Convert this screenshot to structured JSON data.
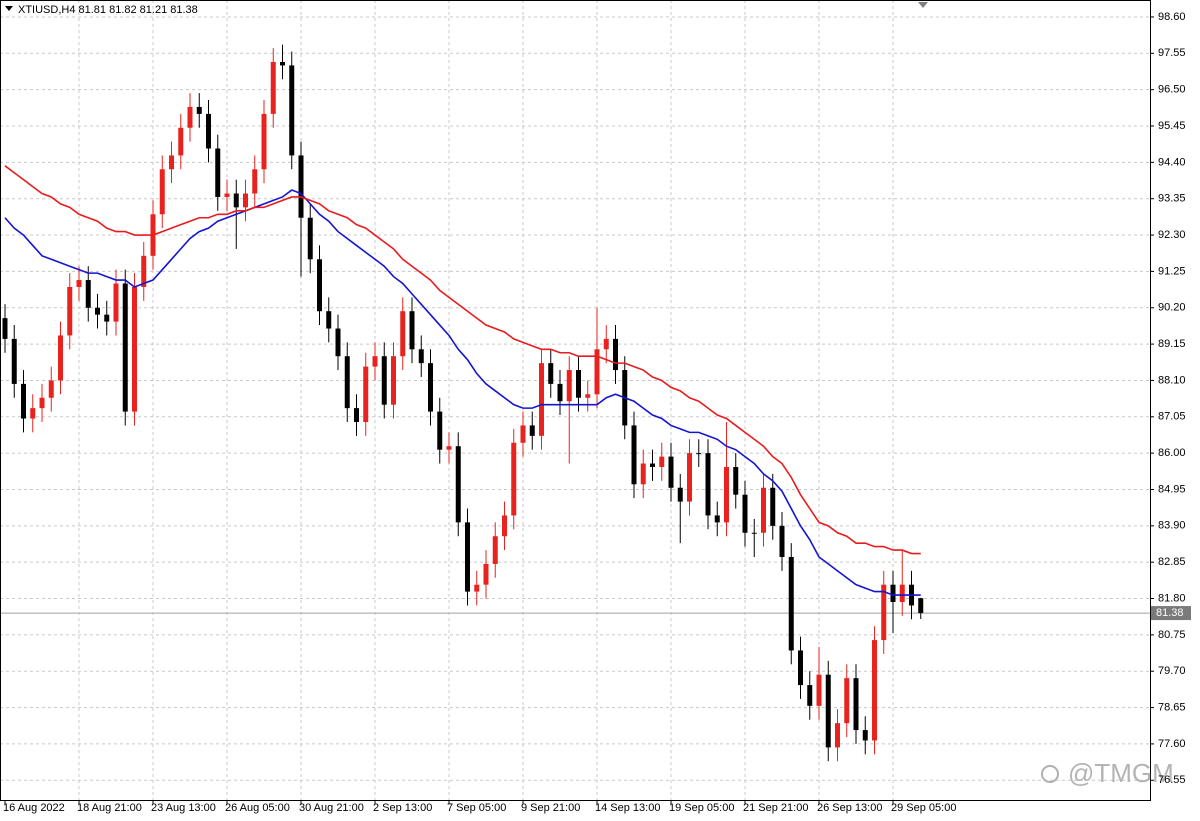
{
  "chart_data": {
    "type": "candlestick",
    "title": "XTIUSD,H4  81.81 81.82 81.21 81.38",
    "watermark": "@TMGM",
    "up_color": "#e8231f",
    "down_color": "#000000",
    "grid": true,
    "last_price": 81.38,
    "ylim": [
      75.98,
      99.09
    ],
    "yticks": [
      {
        "value": 98.6,
        "label": "98.60"
      },
      97.55,
      {
        "value": 96.5,
        "label": "96.50"
      },
      95.45,
      {
        "value": 94.4,
        "label": "94.40"
      },
      93.35,
      {
        "value": 92.3,
        "label": "92.30"
      },
      91.25,
      {
        "value": 90.2,
        "label": "90.20"
      },
      89.15,
      {
        "value": 88.1,
        "label": "88.10"
      },
      87.05,
      {
        "value": 86,
        "label": "86.00"
      },
      84.95,
      {
        "value": 83.9,
        "label": "83.90"
      },
      82.85,
      {
        "value": 81.8,
        "label": "81.80"
      },
      80.75,
      {
        "value": 79.7,
        "label": "79.70"
      },
      78.65,
      {
        "value": 77.6,
        "label": "77.60"
      },
      76.55
    ],
    "categories": [
      "16 Aug 2022",
      null,
      null,
      null,
      null,
      null,
      null,
      null,
      "18 Aug 21:00",
      null,
      null,
      null,
      null,
      null,
      null,
      null,
      "23 Aug 13:00",
      null,
      null,
      null,
      null,
      null,
      null,
      null,
      "26 Aug 05:00",
      null,
      null,
      null,
      null,
      null,
      null,
      null,
      "30 Aug 21:00",
      null,
      null,
      null,
      null,
      null,
      null,
      null,
      "2 Sep 13:00",
      null,
      null,
      null,
      null,
      null,
      null,
      null,
      "7 Sep 05:00",
      null,
      null,
      null,
      null,
      null,
      null,
      null,
      "9 Sep 21:00",
      null,
      null,
      null,
      null,
      null,
      null,
      null,
      "14 Sep 13:00",
      null,
      null,
      null,
      null,
      null,
      null,
      null,
      "19 Sep 05:00",
      null,
      null,
      null,
      null,
      null,
      null,
      null,
      "21 Sep 21:00",
      null,
      null,
      null,
      null,
      null,
      null,
      null,
      "26 Sep 13:00",
      null,
      null,
      null,
      null,
      null,
      null,
      null,
      "29 Sep 05:00",
      null,
      null,
      null
    ],
    "open": [
      89.9,
      89.3,
      88.0,
      87.0,
      87.3,
      87.6,
      88.1,
      89.4,
      90.8,
      91.0,
      90.2,
      90.0,
      89.8,
      90.9,
      87.2,
      90.8,
      91.7,
      92.9,
      94.2,
      94.6,
      95.4,
      96.0,
      95.8,
      94.8,
      93.4,
      93.5,
      93.1,
      93.5,
      94.2,
      95.8,
      97.3,
      97.2,
      94.6,
      92.8,
      91.6,
      90.1,
      89.6,
      88.8,
      87.3,
      86.9,
      88.5,
      88.8,
      87.4,
      88.8,
      90.1,
      89.0,
      88.6,
      87.2,
      86.1,
      86.2,
      84.0,
      82.0,
      82.2,
      82.8,
      83.6,
      84.2,
      86.3,
      86.8,
      86.5,
      88.6,
      88.0,
      87.5,
      88.4,
      87.6,
      87.7,
      89.0,
      89.3,
      88.4,
      86.8,
      85.1,
      85.7,
      85.6,
      85.9,
      85.0,
      84.6,
      86.0,
      86.0,
      84.2,
      84.0,
      85.6,
      84.8,
      83.7,
      83.7,
      85.0,
      83.9,
      83.0,
      80.3,
      79.3,
      78.7,
      79.6,
      77.5,
      78.2,
      79.5,
      78.0,
      77.7,
      80.6,
      82.2,
      81.7,
      82.2,
      81.81
    ],
    "high": [
      90.3,
      89.7,
      88.4,
      87.7,
      88.0,
      88.5,
      89.8,
      91.2,
      91.4,
      91.4,
      90.6,
      90.4,
      91.3,
      91.3,
      91.2,
      92.1,
      93.3,
      94.6,
      95.0,
      95.8,
      96.4,
      96.4,
      96.2,
      95.2,
      93.9,
      93.9,
      93.9,
      94.6,
      96.2,
      97.7,
      97.8,
      97.6,
      95.0,
      93.2,
      92.0,
      90.5,
      90.0,
      89.2,
      87.7,
      88.9,
      89.2,
      89.2,
      89.2,
      90.5,
      90.5,
      89.4,
      89.0,
      87.6,
      86.6,
      86.6,
      84.4,
      82.6,
      83.2,
      84.0,
      84.6,
      86.7,
      87.2,
      87.2,
      89.0,
      89.0,
      88.4,
      88.8,
      88.8,
      88.1,
      90.2,
      89.7,
      89.7,
      88.8,
      87.2,
      86.1,
      86.1,
      86.3,
      86.3,
      85.4,
      86.4,
      86.4,
      86.4,
      84.6,
      86.9,
      86.0,
      85.2,
      84.1,
      85.4,
      85.4,
      84.3,
      83.4,
      80.7,
      79.7,
      80.4,
      80.0,
      78.6,
      79.9,
      79.9,
      78.4,
      81.0,
      82.6,
      82.6,
      83.2,
      82.6,
      81.82
    ],
    "low": [
      88.9,
      87.6,
      86.6,
      86.6,
      86.9,
      87.2,
      87.7,
      89.0,
      90.4,
      89.8,
      89.6,
      89.4,
      89.4,
      86.8,
      86.8,
      90.4,
      91.3,
      92.5,
      93.8,
      94.2,
      95.0,
      95.4,
      94.4,
      93.0,
      93.0,
      91.9,
      92.7,
      93.1,
      93.8,
      95.4,
      96.8,
      94.2,
      91.1,
      91.2,
      89.7,
      89.2,
      88.4,
      86.9,
      86.5,
      86.5,
      88.1,
      87.0,
      87.0,
      88.4,
      88.6,
      88.2,
      86.8,
      85.7,
      85.7,
      83.6,
      81.6,
      81.6,
      81.8,
      82.4,
      83.2,
      83.8,
      85.9,
      86.1,
      86.1,
      87.6,
      87.1,
      85.7,
      87.2,
      87.2,
      87.3,
      88.6,
      88.0,
      86.4,
      84.7,
      84.7,
      85.2,
      85.2,
      84.6,
      83.4,
      84.2,
      85.6,
      83.8,
      83.6,
      83.6,
      84.4,
      83.3,
      83.0,
      83.3,
      83.5,
      82.6,
      79.9,
      78.9,
      78.3,
      78.3,
      77.1,
      77.1,
      77.8,
      77.6,
      77.3,
      77.3,
      80.2,
      80.8,
      81.3,
      81.2,
      81.21
    ],
    "close": [
      89.3,
      88.0,
      87.0,
      87.3,
      87.6,
      88.1,
      89.4,
      90.8,
      91.0,
      90.2,
      90.0,
      89.8,
      90.9,
      87.2,
      90.8,
      91.7,
      92.9,
      94.2,
      94.6,
      95.4,
      96.0,
      95.8,
      94.8,
      93.4,
      93.5,
      93.1,
      93.5,
      94.2,
      95.8,
      97.3,
      97.2,
      94.6,
      92.8,
      91.6,
      90.1,
      89.6,
      88.8,
      87.3,
      86.9,
      88.5,
      88.8,
      87.4,
      88.8,
      90.1,
      89.0,
      88.6,
      87.2,
      86.1,
      86.2,
      84.0,
      82.0,
      82.2,
      82.8,
      83.6,
      84.2,
      86.3,
      86.8,
      86.5,
      88.6,
      88.0,
      87.5,
      88.4,
      87.6,
      87.7,
      89.0,
      89.3,
      88.4,
      86.8,
      85.1,
      85.7,
      85.6,
      85.9,
      85.0,
      84.6,
      86.0,
      86.0,
      84.2,
      84.0,
      85.6,
      84.8,
      83.7,
      83.7,
      85.0,
      83.9,
      83.0,
      80.3,
      79.3,
      78.7,
      79.6,
      77.5,
      78.2,
      79.5,
      78.0,
      77.7,
      80.6,
      82.2,
      81.7,
      82.2,
      81.6,
      81.38
    ],
    "series": [
      {
        "color": "#1414d2",
        "values": [
          92.8,
          92.5,
          92.3,
          92.0,
          91.7,
          91.6,
          91.5,
          91.4,
          91.3,
          91.2,
          91.2,
          91.1,
          91.0,
          91.0,
          90.8,
          90.9,
          91.0,
          91.3,
          91.6,
          91.9,
          92.2,
          92.4,
          92.5,
          92.7,
          92.8,
          92.9,
          93.0,
          93.1,
          93.2,
          93.3,
          93.4,
          93.6,
          93.5,
          93.2,
          92.9,
          92.7,
          92.4,
          92.2,
          92.0,
          91.8,
          91.6,
          91.4,
          91.1,
          90.9,
          90.6,
          90.3,
          90.0,
          89.7,
          89.4,
          89.0,
          88.7,
          88.3,
          88.0,
          87.8,
          87.6,
          87.4,
          87.3,
          87.3,
          87.4,
          87.4,
          87.4,
          87.4,
          87.4,
          87.4,
          87.4,
          87.6,
          87.7,
          87.6,
          87.5,
          87.3,
          87.1,
          87.0,
          86.8,
          86.7,
          86.6,
          86.6,
          86.5,
          86.4,
          86.2,
          86.1,
          85.9,
          85.7,
          85.4,
          85.2,
          84.9,
          84.4,
          83.9,
          83.5,
          83.0,
          82.8,
          82.6,
          82.4,
          82.2,
          82.1,
          82.0,
          82.0,
          81.9,
          81.9,
          81.9,
          81.9
        ]
      },
      {
        "color": "#e81c1c",
        "values": [
          94.3,
          94.1,
          93.9,
          93.7,
          93.5,
          93.4,
          93.2,
          93.1,
          92.9,
          92.8,
          92.7,
          92.5,
          92.4,
          92.4,
          92.3,
          92.3,
          92.3,
          92.4,
          92.5,
          92.6,
          92.7,
          92.8,
          92.8,
          92.9,
          92.9,
          93.0,
          93.0,
          93.1,
          93.1,
          93.2,
          93.3,
          93.4,
          93.4,
          93.3,
          93.2,
          93.0,
          92.9,
          92.8,
          92.6,
          92.5,
          92.3,
          92.1,
          91.9,
          91.6,
          91.4,
          91.2,
          91.0,
          90.7,
          90.5,
          90.3,
          90.1,
          89.9,
          89.7,
          89.6,
          89.5,
          89.3,
          89.2,
          89.1,
          89.0,
          89.0,
          88.9,
          88.9,
          88.8,
          88.8,
          88.8,
          88.7,
          88.6,
          88.6,
          88.5,
          88.4,
          88.2,
          88.1,
          87.9,
          87.8,
          87.6,
          87.5,
          87.3,
          87.1,
          87.0,
          86.8,
          86.6,
          86.4,
          86.2,
          85.9,
          85.7,
          85.3,
          84.8,
          84.4,
          84.0,
          83.9,
          83.7,
          83.6,
          83.4,
          83.4,
          83.3,
          83.3,
          83.2,
          83.2,
          83.1,
          83.1
        ]
      }
    ]
  }
}
